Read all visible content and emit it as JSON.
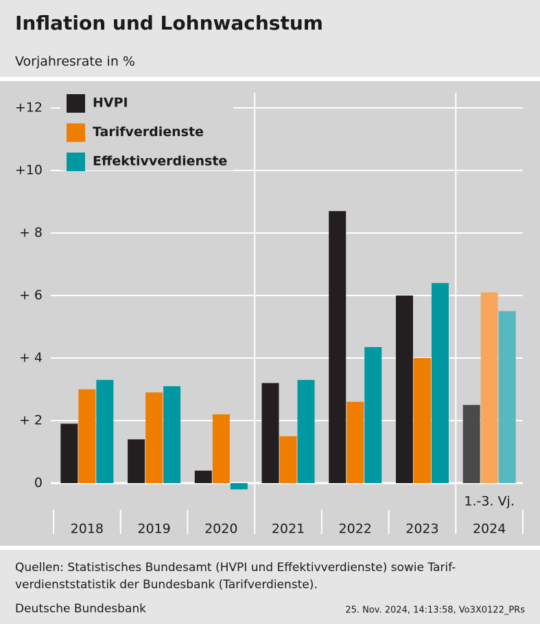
{
  "chart_data": {
    "type": "bar",
    "title": "Inflation und Lohnwachstum",
    "subtitle": "Vorjahresrate in %",
    "categories": [
      "2018",
      "2019",
      "2020",
      "2021",
      "2022",
      "2023",
      "2024"
    ],
    "annotation": "1.-3. Vj.",
    "series": [
      {
        "name": "HVPI",
        "color": "#231f20",
        "point_colors": [
          "#231f20",
          "#231f20",
          "#231f20",
          "#231f20",
          "#231f20",
          "#231f20",
          "#4b4a4a"
        ],
        "values": [
          1.9,
          1.4,
          0.4,
          3.2,
          8.7,
          6.0,
          2.5
        ]
      },
      {
        "name": "Tarifverdienste",
        "color": "#ef7d00",
        "point_colors": [
          "#ef7d00",
          "#ef7d00",
          "#ef7d00",
          "#ef7d00",
          "#ef7d00",
          "#ef7d00",
          "#f8a65c"
        ],
        "values": [
          3.0,
          2.9,
          2.2,
          1.5,
          2.6,
          4.0,
          6.1
        ]
      },
      {
        "name": "Effektivverdienste",
        "color": "#0098a1",
        "point_colors": [
          "#0098a1",
          "#0098a1",
          "#0098a1",
          "#0098a1",
          "#0098a1",
          "#0098a1",
          "#55b9bf"
        ],
        "values": [
          3.3,
          3.1,
          -0.2,
          3.3,
          4.35,
          6.4,
          5.5
        ]
      }
    ],
    "ylim": [
      -0.6,
      12.6
    ],
    "yticks": [
      {
        "value": 0,
        "label": "0"
      },
      {
        "value": 2,
        "label": "+ 2"
      },
      {
        "value": 4,
        "label": "+ 4"
      },
      {
        "value": 6,
        "label": "+ 6"
      },
      {
        "value": 8,
        "label": "+ 8"
      },
      {
        "value": 10,
        "label": "+10"
      },
      {
        "value": 12,
        "label": "+12"
      }
    ],
    "grid": true,
    "legend": "top-left",
    "source": [
      "Quellen: Statistisches Bundesamt (HVPI und Effektivverdienste) sowie Tarif-",
      "verdienststatistik der Bundesbank (Tarifverdienste)."
    ],
    "publisher": "Deutsche Bundesbank",
    "timestamp": "25. Nov. 2024, 14:13:58, Vo3X0122_PRs"
  }
}
